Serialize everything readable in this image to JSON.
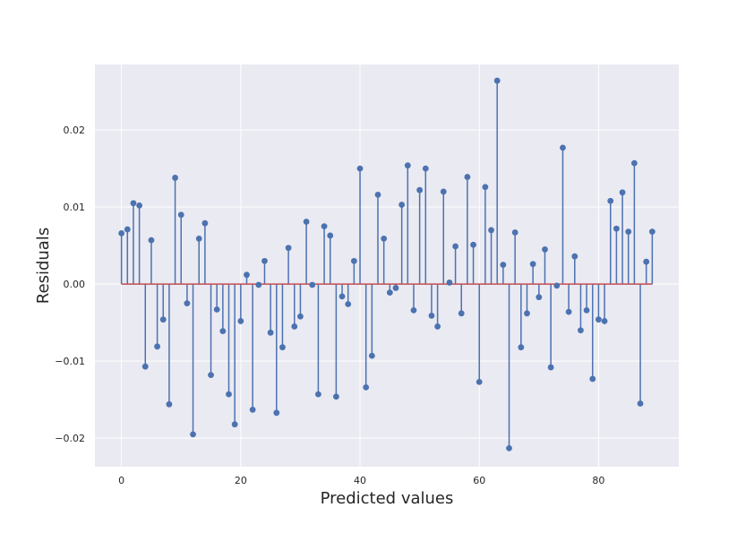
{
  "chart_data": {
    "type": "stem",
    "title": "",
    "xlabel": "Predicted values",
    "ylabel": "Residuals",
    "xlim": [
      -4.45,
      93.45
    ],
    "ylim": [
      -0.0237,
      0.0285
    ],
    "xticks": [
      0,
      20,
      40,
      60,
      80
    ],
    "yticks": [
      -0.02,
      -0.01,
      0.0,
      0.01,
      0.02
    ],
    "ytick_labels": [
      "−0.02",
      "−0.01",
      "0.00",
      "0.01",
      "0.02"
    ],
    "baseline": 0,
    "colors": {
      "stem": "#4c72b0",
      "baseline": "#c44e52",
      "plot_bg": "#eaeaf2",
      "grid": "#ffffff"
    },
    "series": [
      {
        "name": "residuals",
        "x": [
          0,
          1,
          2,
          3,
          4,
          5,
          6,
          7,
          8,
          9,
          10,
          11,
          12,
          13,
          14,
          15,
          16,
          17,
          18,
          19,
          20,
          21,
          22,
          23,
          24,
          25,
          26,
          27,
          28,
          29,
          30,
          31,
          32,
          33,
          34,
          35,
          36,
          37,
          38,
          39,
          40,
          41,
          42,
          43,
          44,
          45,
          46,
          47,
          48,
          49,
          50,
          51,
          52,
          53,
          54,
          55,
          56,
          57,
          58,
          59,
          60,
          61,
          62,
          63,
          64,
          65,
          66,
          67,
          68,
          69,
          70,
          71,
          72,
          73,
          74,
          75,
          76,
          77,
          78,
          79,
          80,
          81,
          82,
          83,
          84,
          85,
          86,
          87,
          88,
          89
        ],
        "values": [
          0.0066,
          0.0071,
          0.0105,
          0.0102,
          -0.0107,
          0.0057,
          -0.0081,
          -0.0046,
          -0.0156,
          0.0138,
          0.009,
          -0.0025,
          -0.0195,
          0.0059,
          0.0079,
          -0.0118,
          -0.0033,
          -0.0061,
          -0.0143,
          -0.0182,
          -0.0048,
          0.0012,
          -0.0163,
          -0.0001,
          0.003,
          -0.0063,
          -0.0167,
          -0.0082,
          0.0047,
          -0.0055,
          -0.0042,
          0.0081,
          -0.0001,
          -0.0143,
          0.0075,
          0.0063,
          -0.0146,
          -0.0016,
          -0.0026,
          0.003,
          0.015,
          -0.0134,
          -0.0093,
          0.0116,
          0.0059,
          -0.0011,
          -0.0005,
          0.0103,
          0.0154,
          -0.0034,
          0.0122,
          0.015,
          -0.0041,
          -0.0055,
          0.012,
          0.0002,
          0.0049,
          -0.0038,
          0.0139,
          0.0051,
          -0.0127,
          0.0126,
          0.007,
          0.0264,
          0.0025,
          -0.0213,
          0.0067,
          -0.0082,
          -0.0038,
          0.0026,
          -0.0017,
          0.0045,
          -0.0108,
          -0.0002,
          0.0177,
          -0.0036,
          0.0036,
          -0.006,
          -0.0034,
          -0.0123,
          -0.0046,
          -0.0048,
          0.0108,
          0.0072,
          0.0119,
          0.0068,
          0.0157,
          -0.0155,
          0.0029,
          0.0068
        ]
      }
    ]
  }
}
